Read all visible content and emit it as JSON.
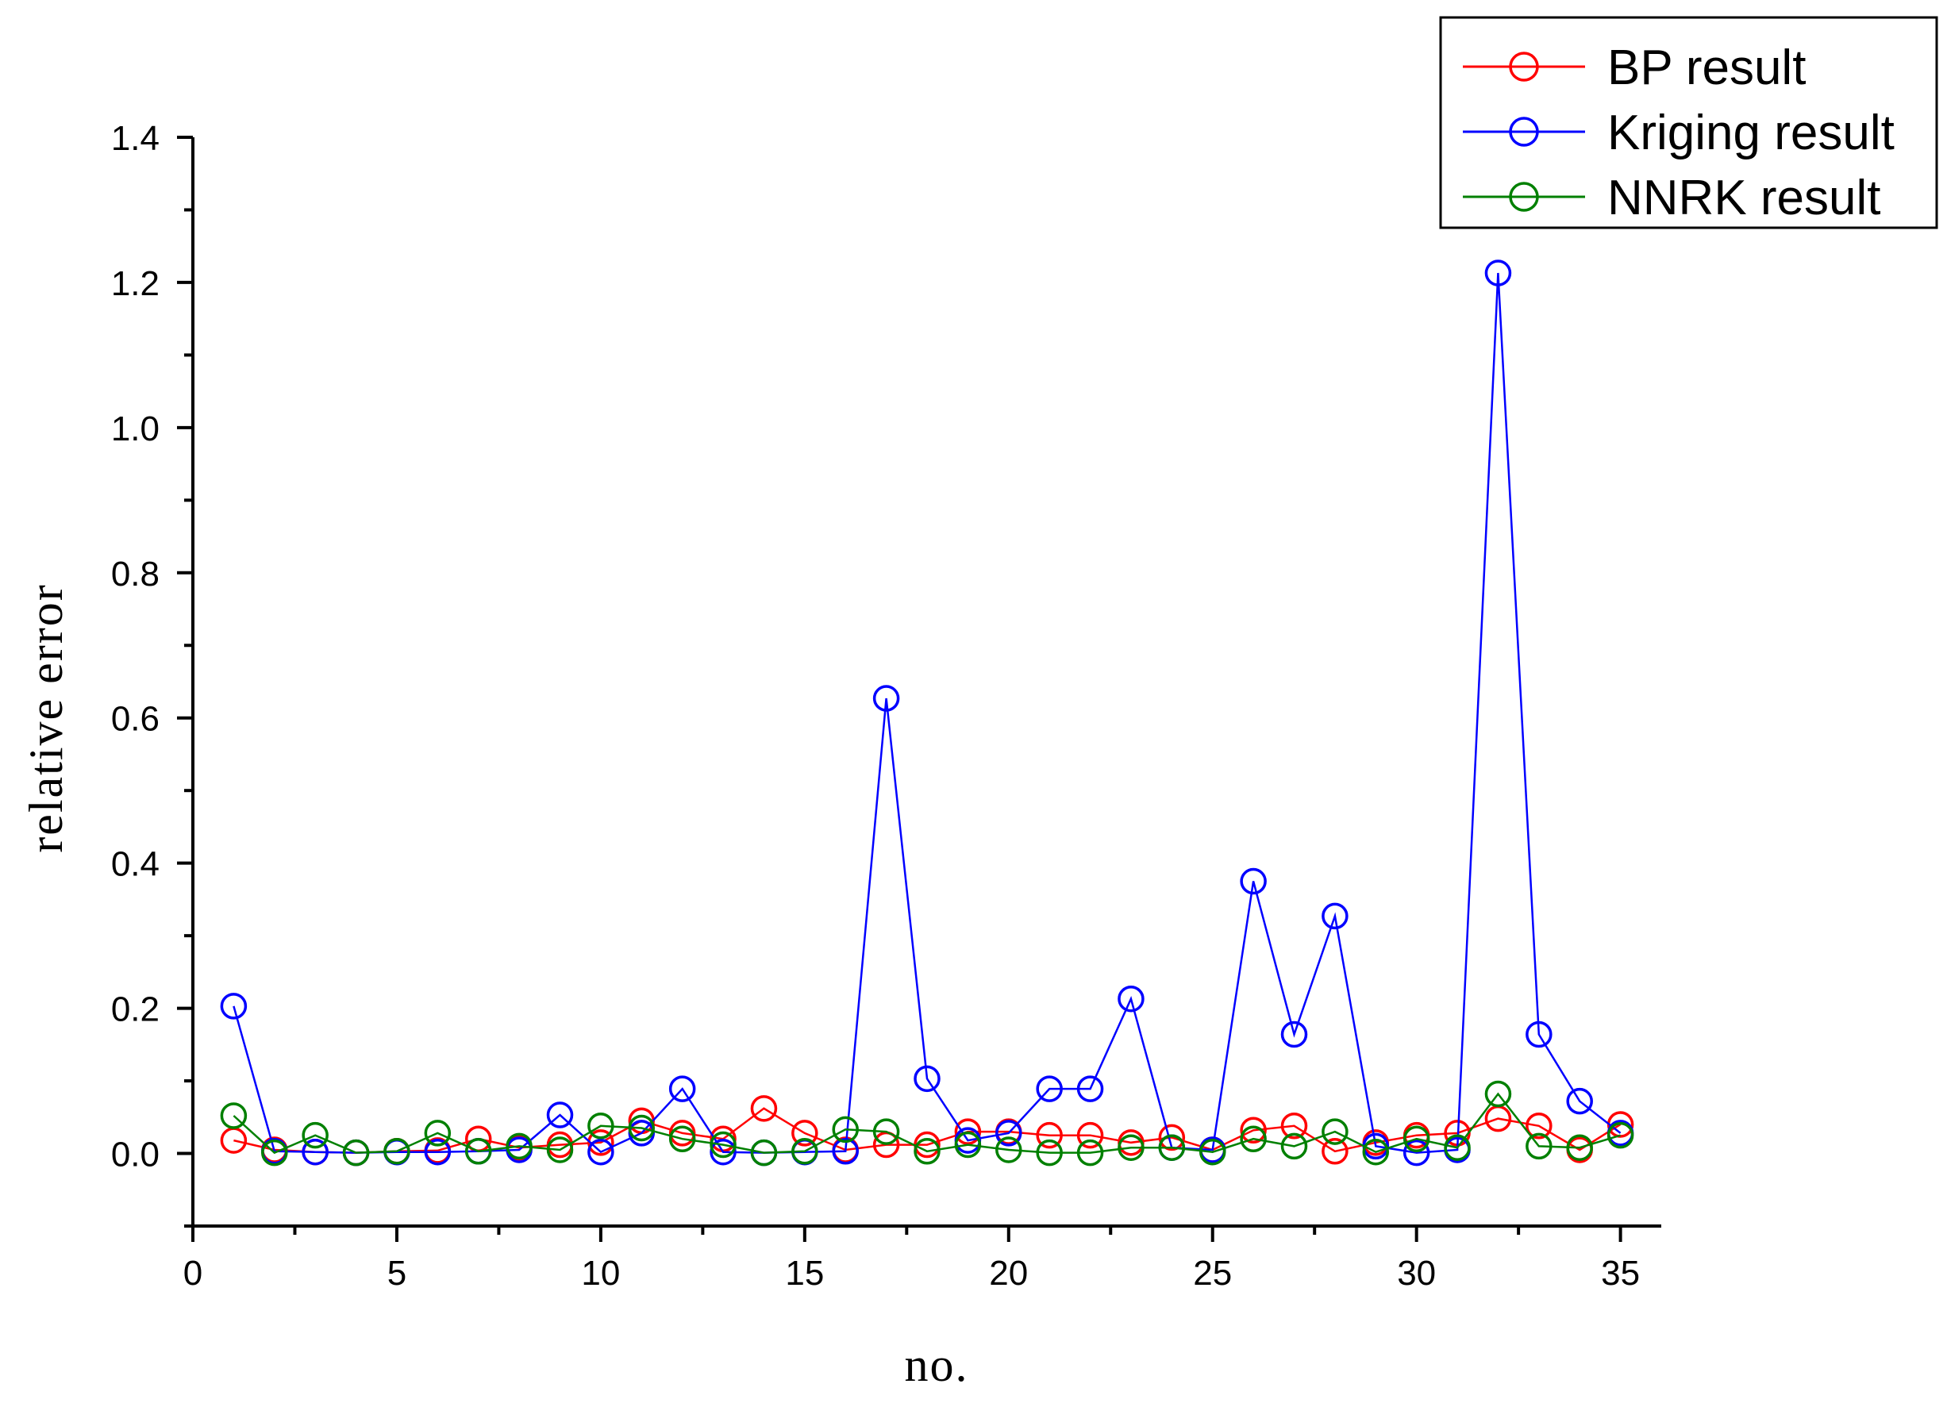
{
  "chart_data": {
    "type": "line",
    "title": "",
    "xlabel": "no.",
    "ylabel": "relative error",
    "xlim": [
      0,
      36
    ],
    "ylim": [
      -0.1,
      1.4
    ],
    "x_ticks": [
      0,
      5,
      10,
      15,
      20,
      25,
      30,
      35
    ],
    "x_tick_labels": [
      "0",
      "5",
      "10",
      "15",
      "20",
      "25",
      "30",
      "35"
    ],
    "y_ticks": [
      0.0,
      0.2,
      0.4,
      0.6,
      0.8,
      1.0,
      1.2,
      1.4
    ],
    "y_tick_labels": [
      "0.0",
      "0.2",
      "0.4",
      "0.6",
      "0.8",
      "1.0",
      "1.2",
      "1.4"
    ],
    "grid": false,
    "legend_position": "top-right",
    "x": [
      1,
      2,
      3,
      4,
      5,
      6,
      7,
      8,
      9,
      10,
      11,
      12,
      13,
      14,
      15,
      16,
      17,
      18,
      19,
      20,
      21,
      22,
      23,
      24,
      25,
      26,
      27,
      28,
      29,
      30,
      31,
      32,
      33,
      34,
      35
    ],
    "series": [
      {
        "name": "BP result",
        "color": "#ff0000",
        "marker": "open-circle",
        "values": [
          0.018,
          0.005,
          0.002,
          0.001,
          0.003,
          0.004,
          0.02,
          0.008,
          0.012,
          0.015,
          0.045,
          0.028,
          0.02,
          0.062,
          0.028,
          0.005,
          0.012,
          0.012,
          0.03,
          0.03,
          0.025,
          0.025,
          0.015,
          0.022,
          0.005,
          0.032,
          0.038,
          0.003,
          0.015,
          0.025,
          0.028,
          0.048,
          0.038,
          0.005,
          0.04
        ]
      },
      {
        "name": "Kriging result",
        "color": "#0000ff",
        "marker": "open-circle",
        "values": [
          0.203,
          0.003,
          0.002,
          0.001,
          0.002,
          0.002,
          0.003,
          0.005,
          0.053,
          0.002,
          0.028,
          0.089,
          0.002,
          0.001,
          0.002,
          0.003,
          0.627,
          0.103,
          0.018,
          0.028,
          0.089,
          0.089,
          0.213,
          0.008,
          0.005,
          0.375,
          0.164,
          0.327,
          0.01,
          0.001,
          0.005,
          1.213,
          0.164,
          0.072,
          0.028
        ]
      },
      {
        "name": "NNRK result",
        "color": "#008000",
        "marker": "open-circle",
        "values": [
          0.052,
          0.001,
          0.025,
          0.001,
          0.003,
          0.028,
          0.003,
          0.01,
          0.005,
          0.038,
          0.035,
          0.02,
          0.012,
          0.001,
          0.003,
          0.033,
          0.03,
          0.003,
          0.012,
          0.005,
          0.001,
          0.001,
          0.008,
          0.008,
          0.002,
          0.02,
          0.01,
          0.03,
          0.002,
          0.02,
          0.008,
          0.082,
          0.01,
          0.008,
          0.025
        ]
      }
    ]
  }
}
